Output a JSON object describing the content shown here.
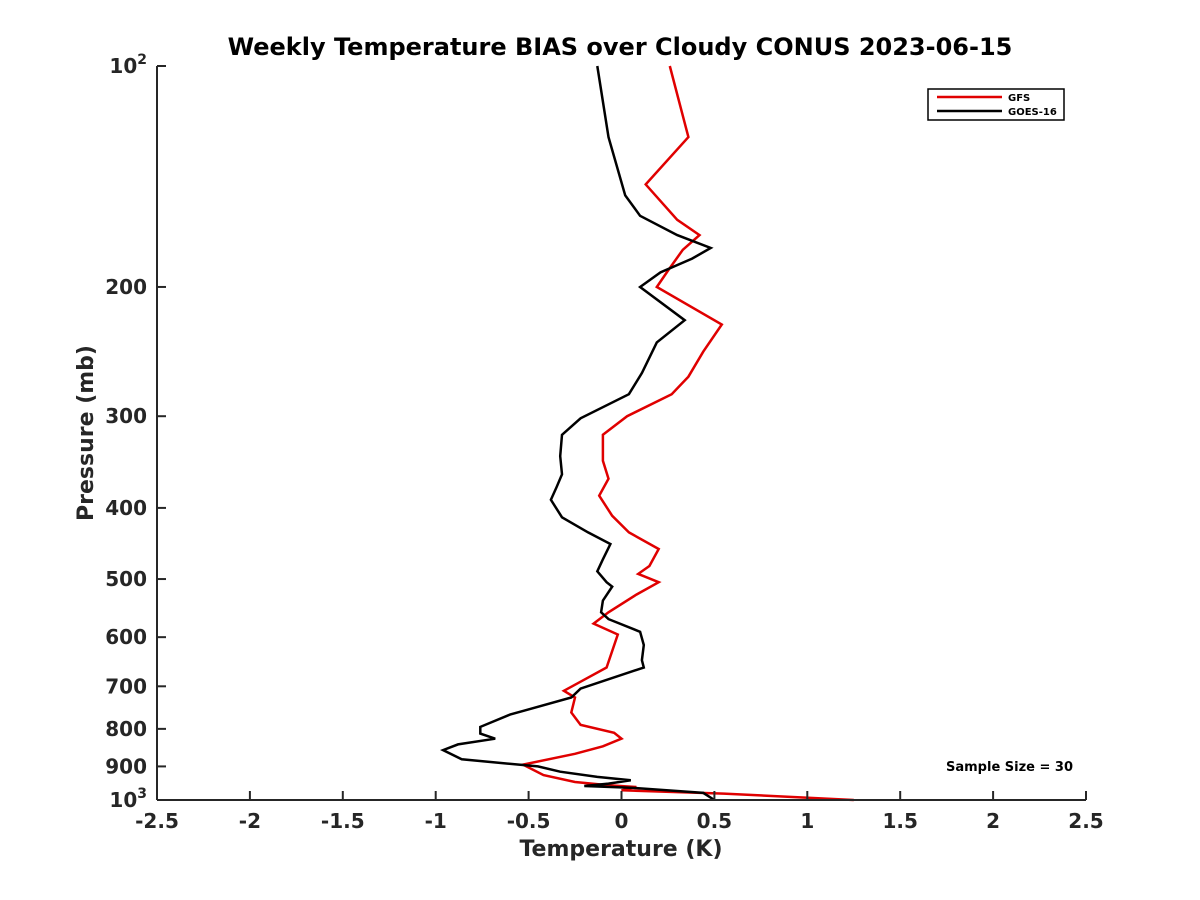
{
  "chart_data": {
    "type": "line",
    "title": "Weekly Temperature BIAS over Cloudy CONUS 2023-06-15",
    "xlabel": "Temperature (K)",
    "ylabel": "Pressure (mb)",
    "xlim": [
      -2.5,
      2.5
    ],
    "ylim": [
      100,
      1000
    ],
    "y_scale": "log",
    "y_reversed": true,
    "x_ticks": [
      -2.5,
      -2,
      -1.5,
      -1,
      -0.5,
      0,
      0.5,
      1,
      1.5,
      2,
      2.5
    ],
    "x_tick_labels": [
      "-2.5",
      "-2",
      "-1.5",
      "-1",
      "-0.5",
      "0",
      "0.5",
      "1",
      "1.5",
      "2",
      "2.5"
    ],
    "y_ticks": [
      100,
      200,
      300,
      400,
      500,
      600,
      700,
      800,
      900,
      1000
    ],
    "y_tick_labels": [
      {
        "base": "10",
        "sup": "2"
      },
      {
        "base": "200"
      },
      {
        "base": "300"
      },
      {
        "base": "400"
      },
      {
        "base": "500"
      },
      {
        "base": "600"
      },
      {
        "base": "700"
      },
      {
        "base": "800"
      },
      {
        "base": "900"
      },
      {
        "base": "10",
        "sup": "3"
      }
    ],
    "grid": false,
    "legend_position": "top-right",
    "annotation": "Sample Size = 30",
    "series": [
      {
        "name": "GFS",
        "color": "#e00000",
        "points": [
          {
            "x": 0.26,
            "p": 100
          },
          {
            "x": 0.36,
            "p": 125
          },
          {
            "x": 0.13,
            "p": 145
          },
          {
            "x": 0.3,
            "p": 162
          },
          {
            "x": 0.42,
            "p": 170
          },
          {
            "x": 0.33,
            "p": 178
          },
          {
            "x": 0.25,
            "p": 190
          },
          {
            "x": 0.19,
            "p": 200
          },
          {
            "x": 0.54,
            "p": 225
          },
          {
            "x": 0.44,
            "p": 245
          },
          {
            "x": 0.36,
            "p": 265
          },
          {
            "x": 0.27,
            "p": 280
          },
          {
            "x": 0.03,
            "p": 300
          },
          {
            "x": -0.1,
            "p": 318
          },
          {
            "x": -0.1,
            "p": 345
          },
          {
            "x": -0.07,
            "p": 365
          },
          {
            "x": -0.12,
            "p": 385
          },
          {
            "x": -0.05,
            "p": 410
          },
          {
            "x": 0.04,
            "p": 432
          },
          {
            "x": 0.2,
            "p": 455
          },
          {
            "x": 0.15,
            "p": 480
          },
          {
            "x": 0.09,
            "p": 492
          },
          {
            "x": 0.2,
            "p": 505
          },
          {
            "x": 0.08,
            "p": 525
          },
          {
            "x": -0.07,
            "p": 555
          },
          {
            "x": -0.15,
            "p": 575
          },
          {
            "x": -0.02,
            "p": 595
          },
          {
            "x": -0.08,
            "p": 660
          },
          {
            "x": -0.22,
            "p": 690
          },
          {
            "x": -0.31,
            "p": 710
          },
          {
            "x": -0.25,
            "p": 725
          },
          {
            "x": -0.27,
            "p": 760
          },
          {
            "x": -0.22,
            "p": 790
          },
          {
            "x": -0.04,
            "p": 810
          },
          {
            "x": 0.0,
            "p": 825
          },
          {
            "x": -0.1,
            "p": 845
          },
          {
            "x": -0.25,
            "p": 865
          },
          {
            "x": -0.53,
            "p": 895
          },
          {
            "x": -0.42,
            "p": 925
          },
          {
            "x": -0.25,
            "p": 945
          },
          {
            "x": -0.07,
            "p": 955
          },
          {
            "x": 0.08,
            "p": 960
          },
          {
            "x": 0.0,
            "p": 970
          },
          {
            "x": 0.55,
            "p": 980
          },
          {
            "x": 1.25,
            "p": 1000
          }
        ]
      },
      {
        "name": "GOES-16",
        "color": "#000000",
        "points": [
          {
            "x": -0.13,
            "p": 100
          },
          {
            "x": -0.07,
            "p": 125
          },
          {
            "x": 0.02,
            "p": 150
          },
          {
            "x": 0.1,
            "p": 160
          },
          {
            "x": 0.3,
            "p": 170
          },
          {
            "x": 0.48,
            "p": 177
          },
          {
            "x": 0.38,
            "p": 183
          },
          {
            "x": 0.21,
            "p": 191
          },
          {
            "x": 0.1,
            "p": 200
          },
          {
            "x": 0.34,
            "p": 222
          },
          {
            "x": 0.19,
            "p": 238
          },
          {
            "x": 0.11,
            "p": 262
          },
          {
            "x": 0.04,
            "p": 280
          },
          {
            "x": -0.22,
            "p": 302
          },
          {
            "x": -0.32,
            "p": 318
          },
          {
            "x": -0.33,
            "p": 340
          },
          {
            "x": -0.32,
            "p": 360
          },
          {
            "x": -0.35,
            "p": 375
          },
          {
            "x": -0.38,
            "p": 390
          },
          {
            "x": -0.32,
            "p": 412
          },
          {
            "x": -0.18,
            "p": 432
          },
          {
            "x": -0.06,
            "p": 448
          },
          {
            "x": -0.1,
            "p": 470
          },
          {
            "x": -0.13,
            "p": 488
          },
          {
            "x": -0.08,
            "p": 505
          },
          {
            "x": -0.05,
            "p": 512
          },
          {
            "x": -0.1,
            "p": 535
          },
          {
            "x": -0.11,
            "p": 555
          },
          {
            "x": -0.07,
            "p": 567
          },
          {
            "x": 0.1,
            "p": 590
          },
          {
            "x": 0.12,
            "p": 615
          },
          {
            "x": 0.11,
            "p": 645
          },
          {
            "x": 0.12,
            "p": 660
          },
          {
            "x": -0.22,
            "p": 705
          },
          {
            "x": -0.27,
            "p": 725
          },
          {
            "x": -0.52,
            "p": 755
          },
          {
            "x": -0.6,
            "p": 765
          },
          {
            "x": -0.76,
            "p": 795
          },
          {
            "x": -0.76,
            "p": 812
          },
          {
            "x": -0.68,
            "p": 825
          },
          {
            "x": -0.88,
            "p": 840
          },
          {
            "x": -0.96,
            "p": 855
          },
          {
            "x": -0.86,
            "p": 880
          },
          {
            "x": -0.45,
            "p": 900
          },
          {
            "x": -0.33,
            "p": 915
          },
          {
            "x": -0.13,
            "p": 930
          },
          {
            "x": 0.05,
            "p": 940
          },
          {
            "x": -0.07,
            "p": 950
          },
          {
            "x": -0.2,
            "p": 957
          },
          {
            "x": 0.05,
            "p": 962
          },
          {
            "x": 0.29,
            "p": 972
          },
          {
            "x": 0.44,
            "p": 978
          },
          {
            "x": 0.5,
            "p": 1000
          }
        ]
      }
    ]
  }
}
